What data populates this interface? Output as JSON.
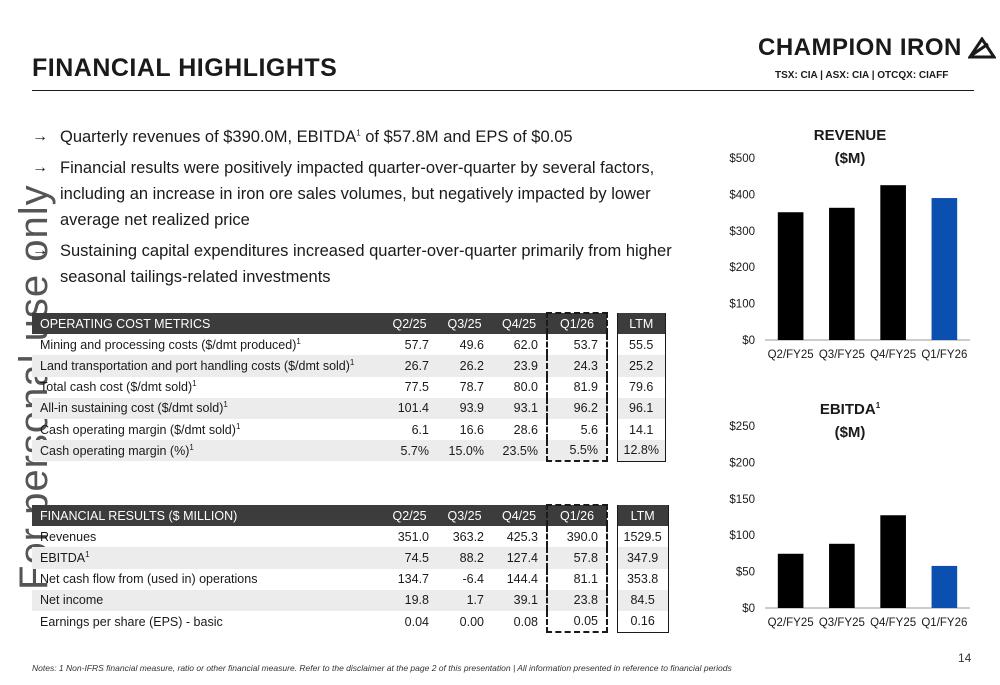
{
  "header": {
    "title": "FINANCIAL HIGHLIGHTS",
    "company": "CHAMPION IRON",
    "tickers": "TSX: CIA  |  ASX: CIA | OTCQX: CIAFF"
  },
  "watermark": "For personal use only",
  "bullets": [
    {
      "text_before": "Quarterly revenues of $390.0M, EBITDA",
      "sup": "1",
      "text_after": " of $57.8M and EPS of $0.05"
    },
    {
      "text": "Financial results were positively impacted quarter-over-quarter by several factors, including an increase in iron ore sales volumes, but negatively impacted by lower average net realized price"
    },
    {
      "text": "Sustaining capital expenditures increased quarter-over-quarter primarily from higher seasonal tailings-related investments"
    }
  ],
  "operating_costs": {
    "header": "OPERATING COST METRICS",
    "columns": [
      "Q2/25",
      "Q3/25",
      "Q4/25",
      "Q1/26",
      "LTM"
    ],
    "rows": [
      {
        "label": "Mining and processing costs ($/dmt produced)",
        "sup": "1",
        "values": [
          "57.7",
          "49.6",
          "62.0",
          "53.7",
          "55.5"
        ]
      },
      {
        "label": "Land transportation and port handling costs ($/dmt sold)",
        "sup": "1",
        "values": [
          "26.7",
          "26.2",
          "23.9",
          "24.3",
          "25.2"
        ]
      },
      {
        "label": "Total cash cost ($/dmt sold)",
        "sup": "1",
        "values": [
          "77.5",
          "78.7",
          "80.0",
          "81.9",
          "79.6"
        ]
      },
      {
        "label": "All-in sustaining cost ($/dmt sold)",
        "sup": "1",
        "values": [
          "101.4",
          "93.9",
          "93.1",
          "96.2",
          "96.1"
        ]
      },
      {
        "label": "Cash operating margin ($/dmt sold)",
        "sup": "1",
        "values": [
          "6.1",
          "16.6",
          "28.6",
          "5.6",
          "14.1"
        ]
      },
      {
        "label": "Cash operating margin (%)",
        "sup": "1",
        "values": [
          "5.7%",
          "15.0%",
          "23.5%",
          "5.5%",
          "12.8%"
        ]
      }
    ]
  },
  "financial_results": {
    "header": "FINANCIAL RESULTS ($ MILLION)",
    "columns": [
      "Q2/25",
      "Q3/25",
      "Q4/25",
      "Q1/26",
      "LTM"
    ],
    "rows": [
      {
        "label": "Revenues",
        "sup": "",
        "values": [
          "351.0",
          "363.2",
          "425.3",
          "390.0",
          "1529.5"
        ]
      },
      {
        "label": "EBITDA",
        "sup": "1",
        "values": [
          "74.5",
          "88.2",
          "127.4",
          "57.8",
          "347.9"
        ]
      },
      {
        "label": "Net cash flow from (used in) operations",
        "sup": "",
        "values": [
          "134.7",
          "-6.4",
          "144.4",
          "81.1",
          "353.8"
        ]
      },
      {
        "label": "Net income",
        "sup": "",
        "values": [
          "19.8",
          "1.7",
          "39.1",
          "23.8",
          "84.5"
        ]
      },
      {
        "label": "Earnings per share (EPS) - basic",
        "sup": "",
        "values": [
          "0.04",
          "0.00",
          "0.08",
          "0.05",
          "0.16"
        ]
      }
    ]
  },
  "chart_data": [
    {
      "type": "bar",
      "title_line1": "REVENUE",
      "title_line2": "($M)",
      "categories": [
        "Q2/FY25",
        "Q3/FY25",
        "Q4/FY25",
        "Q1/FY26"
      ],
      "values": [
        351.0,
        363.2,
        425.3,
        390.0
      ],
      "colors": [
        "#000000",
        "#000000",
        "#000000",
        "#0b4fb0"
      ],
      "ylim": [
        0,
        500
      ],
      "ticks": [
        "$0",
        "$100",
        "$200",
        "$300",
        "$400",
        "$500"
      ],
      "grid": false
    },
    {
      "type": "bar",
      "title_line1": "EBITDA",
      "title_sup": "1",
      "title_line2": "($M)",
      "categories": [
        "Q2/FY25",
        "Q3/FY25",
        "Q4/FY25",
        "Q1/FY26"
      ],
      "values": [
        74.5,
        88.2,
        127.4,
        57.8
      ],
      "colors": [
        "#000000",
        "#000000",
        "#000000",
        "#0b4fb0"
      ],
      "ylim": [
        0,
        250
      ],
      "ticks": [
        "$0",
        "$50",
        "$100",
        "$150",
        "$200",
        "$250"
      ],
      "grid": false
    }
  ],
  "footer": {
    "notes": "Notes: 1 Non-IFRS financial measure, ratio or other financial measure. Refer to the disclaimer at the page 2 of this presentation | All information presented in reference to financial periods",
    "page_number": "14"
  }
}
